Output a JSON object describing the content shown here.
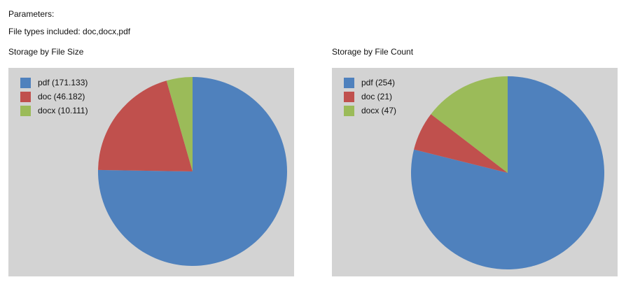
{
  "header": {
    "parameters_label": "Parameters:",
    "file_types": "File types included: doc,docx,pdf"
  },
  "chart_data": [
    {
      "type": "pie",
      "title": "Storage by File Size",
      "slices": [
        {
          "label": "pdf (171.133)",
          "name": "pdf",
          "value": 171.133,
          "color": "#4f81bd"
        },
        {
          "label": "doc (46.182)",
          "name": "doc",
          "value": 46.182,
          "color": "#c0504d"
        },
        {
          "label": "docx (10.111)",
          "name": "docx",
          "value": 10.111,
          "color": "#9bbb59"
        }
      ],
      "legend": "top-left",
      "start": "top",
      "direction": "clockwise"
    },
    {
      "type": "pie",
      "title": "Storage by File Count",
      "slices": [
        {
          "label": "pdf (254)",
          "name": "pdf",
          "value": 254,
          "color": "#4f81bd"
        },
        {
          "label": "doc (21)",
          "name": "doc",
          "value": 21,
          "color": "#c0504d"
        },
        {
          "label": "docx (47)",
          "name": "docx",
          "value": 47,
          "color": "#9bbb59"
        }
      ],
      "legend": "top-left",
      "start": "top",
      "direction": "clockwise"
    }
  ]
}
